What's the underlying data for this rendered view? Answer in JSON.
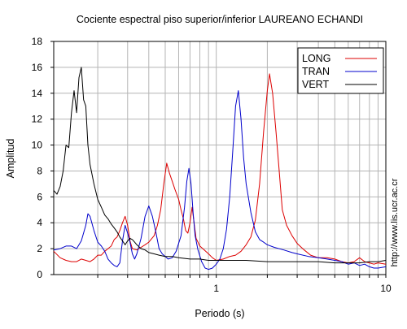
{
  "chart_data": {
    "type": "line",
    "title": "Cociente espectral piso superior/inferior LAUREANO ECHANDI",
    "xlabel": "Periodo (s)",
    "ylabel": "Amplitud",
    "xscale": "log",
    "xlim": [
      0.11,
      10
    ],
    "ylim": [
      0,
      18
    ],
    "xticks": [
      {
        "value": 1,
        "label": "1"
      },
      {
        "value": 10,
        "label": "10"
      }
    ],
    "yticks": [
      0,
      2,
      4,
      6,
      8,
      10,
      12,
      14,
      16,
      18
    ],
    "grid": true,
    "legend_position": "top-right",
    "watermark": "http://www.lis.ucr.ac.cr",
    "series": [
      {
        "name": "LONG",
        "color": "#dd0000",
        "points": [
          [
            0.11,
            1.8
          ],
          [
            0.12,
            1.3
          ],
          [
            0.13,
            1.1
          ],
          [
            0.14,
            1.0
          ],
          [
            0.15,
            1.0
          ],
          [
            0.16,
            1.2
          ],
          [
            0.17,
            1.1
          ],
          [
            0.18,
            1.0
          ],
          [
            0.19,
            1.2
          ],
          [
            0.2,
            1.5
          ],
          [
            0.21,
            1.5
          ],
          [
            0.22,
            1.8
          ],
          [
            0.23,
            2.0
          ],
          [
            0.24,
            2.2
          ],
          [
            0.25,
            2.7
          ],
          [
            0.26,
            2.9
          ],
          [
            0.27,
            3.4
          ],
          [
            0.28,
            4.0
          ],
          [
            0.29,
            4.5
          ],
          [
            0.3,
            3.8
          ],
          [
            0.31,
            2.6
          ],
          [
            0.32,
            2.0
          ],
          [
            0.34,
            1.9
          ],
          [
            0.36,
            2.1
          ],
          [
            0.38,
            2.3
          ],
          [
            0.4,
            2.5
          ],
          [
            0.43,
            3.0
          ],
          [
            0.45,
            3.8
          ],
          [
            0.47,
            5.0
          ],
          [
            0.49,
            7.0
          ],
          [
            0.51,
            8.6
          ],
          [
            0.53,
            7.8
          ],
          [
            0.55,
            7.2
          ],
          [
            0.57,
            6.6
          ],
          [
            0.6,
            5.8
          ],
          [
            0.62,
            5.0
          ],
          [
            0.64,
            4.3
          ],
          [
            0.66,
            3.4
          ],
          [
            0.68,
            3.2
          ],
          [
            0.7,
            4.0
          ],
          [
            0.72,
            5.2
          ],
          [
            0.74,
            4.0
          ],
          [
            0.76,
            2.8
          ],
          [
            0.8,
            2.2
          ],
          [
            0.85,
            1.9
          ],
          [
            0.9,
            1.6
          ],
          [
            0.95,
            1.3
          ],
          [
            1.0,
            1.1
          ],
          [
            1.1,
            1.2
          ],
          [
            1.2,
            1.4
          ],
          [
            1.3,
            1.5
          ],
          [
            1.4,
            1.8
          ],
          [
            1.5,
            2.3
          ],
          [
            1.6,
            2.9
          ],
          [
            1.7,
            4.2
          ],
          [
            1.8,
            7.0
          ],
          [
            1.9,
            11.0
          ],
          [
            2.0,
            14.2
          ],
          [
            2.06,
            15.5
          ],
          [
            2.15,
            14.0
          ],
          [
            2.25,
            11.0
          ],
          [
            2.35,
            8.0
          ],
          [
            2.45,
            5.0
          ],
          [
            2.6,
            3.8
          ],
          [
            2.8,
            3.0
          ],
          [
            3.0,
            2.4
          ],
          [
            3.3,
            1.9
          ],
          [
            3.6,
            1.5
          ],
          [
            4.0,
            1.3
          ],
          [
            4.5,
            1.3
          ],
          [
            5.0,
            1.2
          ],
          [
            5.5,
            1.0
          ],
          [
            6.0,
            0.9
          ],
          [
            6.5,
            1.0
          ],
          [
            7.0,
            1.3
          ],
          [
            7.5,
            1.0
          ],
          [
            8.0,
            0.9
          ],
          [
            8.5,
            0.8
          ],
          [
            9.0,
            0.9
          ],
          [
            10.0,
            0.8
          ]
        ]
      },
      {
        "name": "TRAN",
        "color": "#0000cc",
        "points": [
          [
            0.11,
            1.9
          ],
          [
            0.12,
            2.0
          ],
          [
            0.13,
            2.2
          ],
          [
            0.14,
            2.2
          ],
          [
            0.15,
            2.0
          ],
          [
            0.16,
            2.6
          ],
          [
            0.17,
            3.8
          ],
          [
            0.175,
            4.7
          ],
          [
            0.18,
            4.5
          ],
          [
            0.19,
            3.4
          ],
          [
            0.2,
            2.5
          ],
          [
            0.21,
            2.2
          ],
          [
            0.22,
            1.8
          ],
          [
            0.23,
            1.2
          ],
          [
            0.24,
            0.9
          ],
          [
            0.25,
            0.7
          ],
          [
            0.26,
            0.6
          ],
          [
            0.27,
            0.9
          ],
          [
            0.28,
            2.6
          ],
          [
            0.29,
            3.8
          ],
          [
            0.3,
            3.2
          ],
          [
            0.31,
            2.5
          ],
          [
            0.32,
            1.6
          ],
          [
            0.33,
            1.2
          ],
          [
            0.34,
            1.6
          ],
          [
            0.36,
            2.8
          ],
          [
            0.38,
            4.5
          ],
          [
            0.4,
            5.3
          ],
          [
            0.42,
            4.5
          ],
          [
            0.44,
            3.3
          ],
          [
            0.46,
            2.0
          ],
          [
            0.48,
            1.6
          ],
          [
            0.5,
            1.4
          ],
          [
            0.52,
            1.2
          ],
          [
            0.55,
            1.3
          ],
          [
            0.58,
            1.8
          ],
          [
            0.62,
            3.0
          ],
          [
            0.65,
            5.2
          ],
          [
            0.67,
            7.2
          ],
          [
            0.69,
            8.2
          ],
          [
            0.71,
            7.0
          ],
          [
            0.73,
            4.8
          ],
          [
            0.75,
            3.0
          ],
          [
            0.78,
            1.9
          ],
          [
            0.82,
            1.0
          ],
          [
            0.86,
            0.5
          ],
          [
            0.9,
            0.4
          ],
          [
            0.95,
            0.5
          ],
          [
            1.0,
            0.8
          ],
          [
            1.05,
            1.2
          ],
          [
            1.1,
            2.0
          ],
          [
            1.15,
            3.5
          ],
          [
            1.2,
            6.0
          ],
          [
            1.25,
            9.5
          ],
          [
            1.3,
            13.0
          ],
          [
            1.35,
            14.2
          ],
          [
            1.4,
            12.0
          ],
          [
            1.45,
            9.0
          ],
          [
            1.5,
            7.0
          ],
          [
            1.6,
            4.8
          ],
          [
            1.7,
            3.3
          ],
          [
            1.8,
            2.7
          ],
          [
            1.9,
            2.5
          ],
          [
            2.0,
            2.3
          ],
          [
            2.2,
            2.1
          ],
          [
            2.5,
            1.9
          ],
          [
            2.8,
            1.7
          ],
          [
            3.0,
            1.6
          ],
          [
            3.5,
            1.4
          ],
          [
            4.0,
            1.3
          ],
          [
            4.5,
            1.2
          ],
          [
            5.0,
            1.1
          ],
          [
            5.5,
            1.0
          ],
          [
            6.0,
            0.8
          ],
          [
            6.5,
            0.9
          ],
          [
            7.0,
            0.7
          ],
          [
            7.5,
            0.8
          ],
          [
            8.0,
            0.6
          ],
          [
            8.5,
            0.5
          ],
          [
            9.0,
            0.5
          ],
          [
            10.0,
            0.6
          ]
        ]
      },
      {
        "name": "VERT",
        "color": "#000000",
        "points": [
          [
            0.11,
            6.5
          ],
          [
            0.115,
            6.2
          ],
          [
            0.12,
            6.8
          ],
          [
            0.125,
            8.0
          ],
          [
            0.13,
            10.0
          ],
          [
            0.135,
            9.8
          ],
          [
            0.14,
            12.5
          ],
          [
            0.145,
            14.2
          ],
          [
            0.15,
            12.5
          ],
          [
            0.155,
            15.2
          ],
          [
            0.16,
            16.0
          ],
          [
            0.165,
            13.5
          ],
          [
            0.17,
            13.0
          ],
          [
            0.175,
            10.0
          ],
          [
            0.18,
            8.5
          ],
          [
            0.19,
            7.0
          ],
          [
            0.2,
            5.8
          ],
          [
            0.21,
            5.2
          ],
          [
            0.22,
            4.6
          ],
          [
            0.23,
            4.3
          ],
          [
            0.24,
            3.9
          ],
          [
            0.25,
            3.6
          ],
          [
            0.26,
            3.3
          ],
          [
            0.27,
            2.9
          ],
          [
            0.28,
            2.6
          ],
          [
            0.29,
            2.3
          ],
          [
            0.3,
            2.6
          ],
          [
            0.31,
            2.8
          ],
          [
            0.32,
            2.7
          ],
          [
            0.33,
            2.5
          ],
          [
            0.34,
            2.3
          ],
          [
            0.36,
            2.0
          ],
          [
            0.38,
            1.9
          ],
          [
            0.4,
            1.7
          ],
          [
            0.43,
            1.6
          ],
          [
            0.46,
            1.5
          ],
          [
            0.5,
            1.4
          ],
          [
            0.55,
            1.4
          ],
          [
            0.6,
            1.3
          ],
          [
            0.7,
            1.2
          ],
          [
            0.8,
            1.2
          ],
          [
            0.9,
            1.1
          ],
          [
            1.0,
            1.1
          ],
          [
            1.2,
            1.1
          ],
          [
            1.5,
            1.1
          ],
          [
            2.0,
            1.0
          ],
          [
            2.5,
            1.0
          ],
          [
            3.0,
            1.0
          ],
          [
            4.0,
            1.0
          ],
          [
            5.0,
            0.9
          ],
          [
            6.0,
            0.9
          ],
          [
            7.0,
            0.9
          ],
          [
            8.0,
            1.0
          ],
          [
            9.0,
            1.0
          ],
          [
            10.0,
            1.1
          ]
        ]
      }
    ]
  }
}
